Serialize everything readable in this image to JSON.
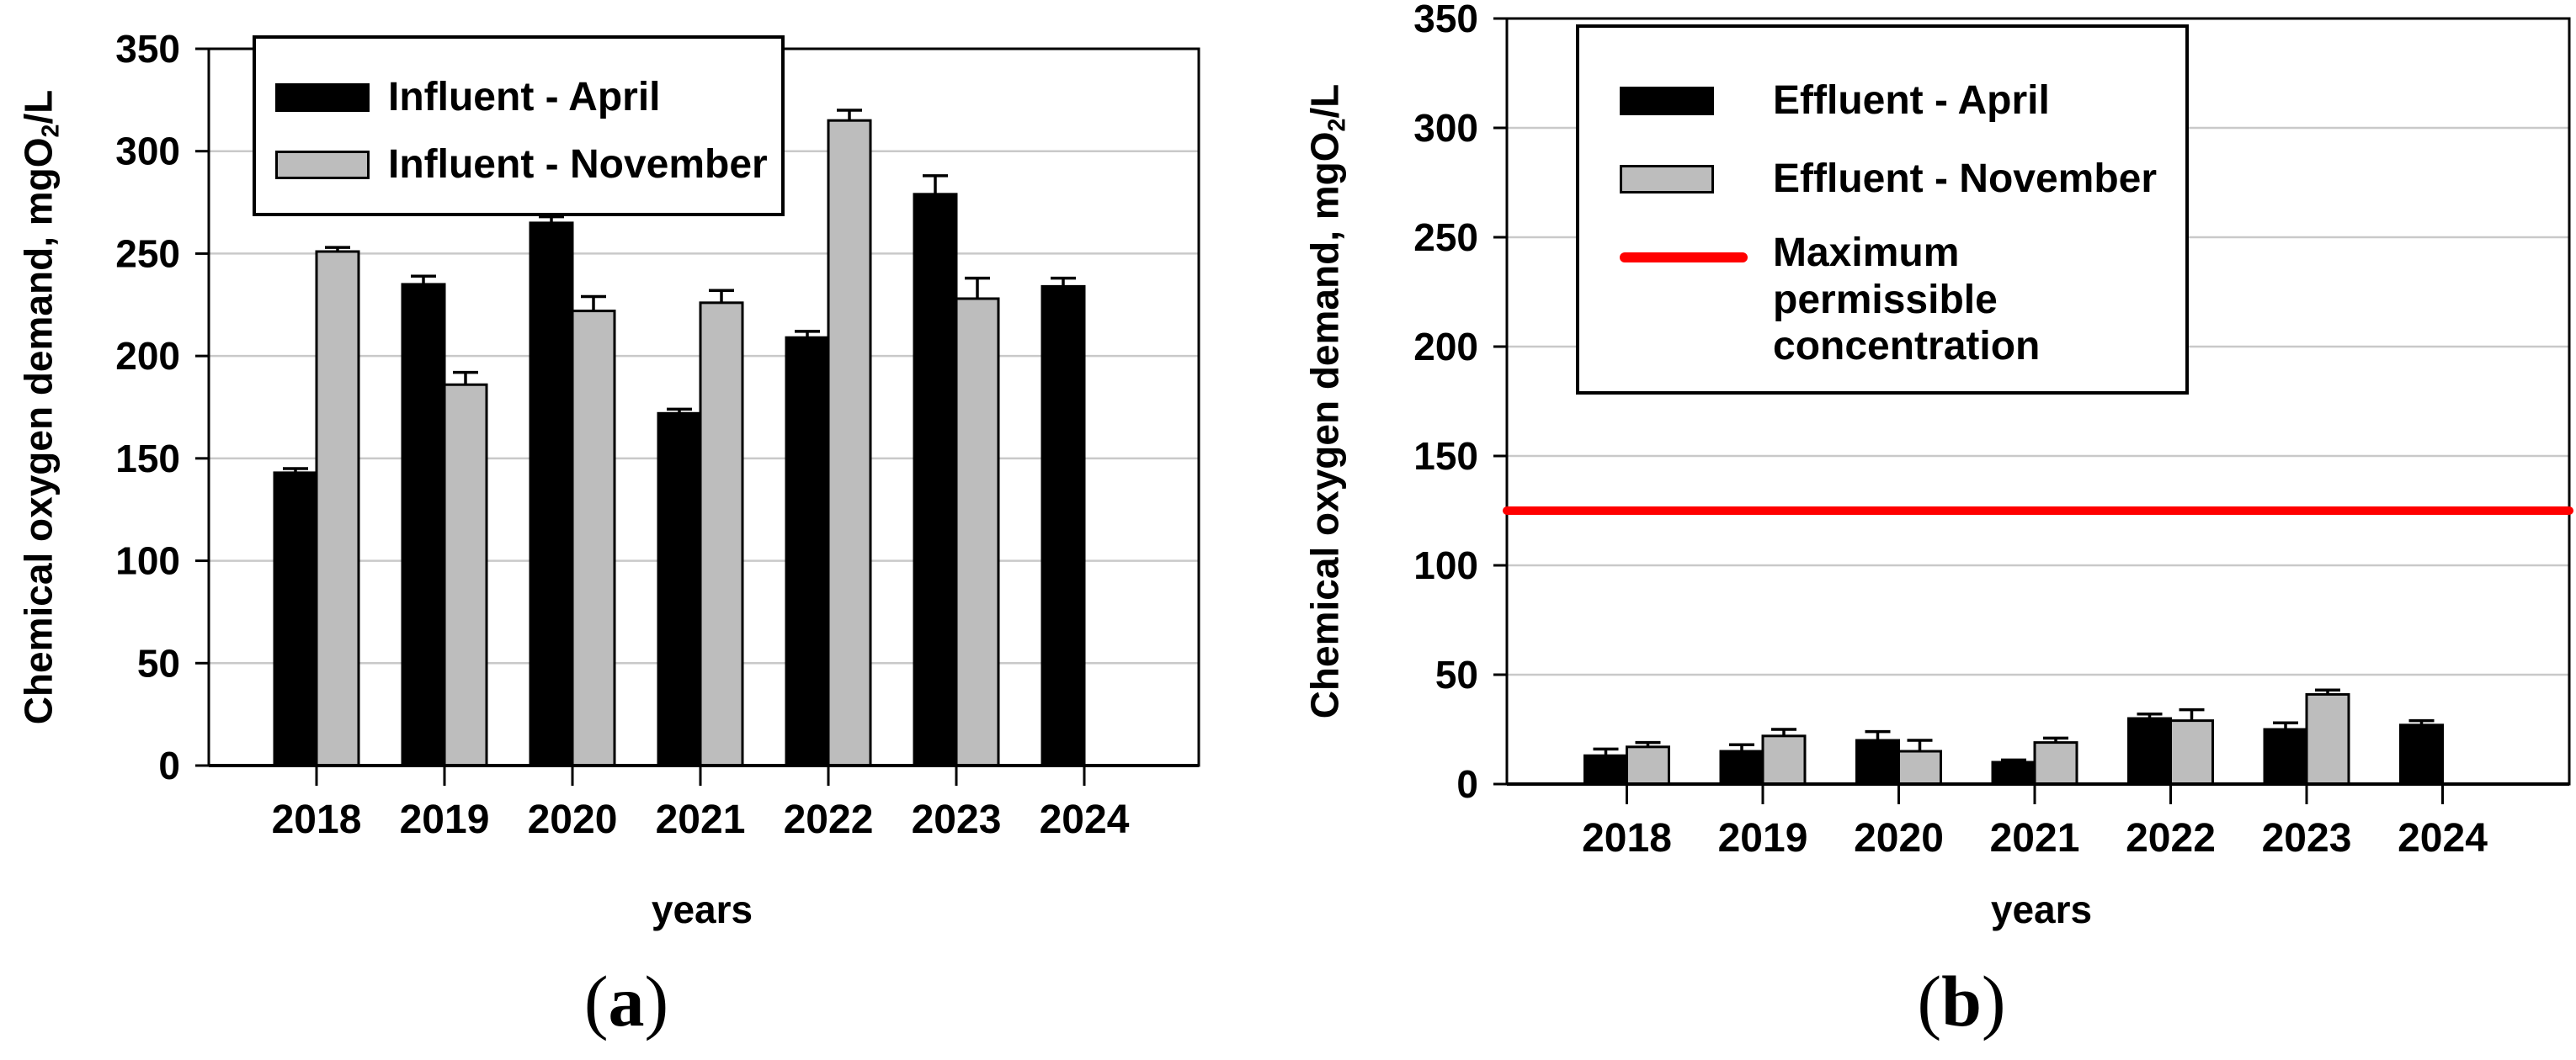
{
  "colors": {
    "april_bar": "#000000",
    "november_bar": "#bdbdbd",
    "max_line": "#ff0000",
    "grid_line": "#c9c9c9",
    "axis": "#000000"
  },
  "panels": [
    {
      "caption": {
        "open": "(",
        "letter": "a",
        "close": ")"
      },
      "xlabel": "years",
      "ylabel": {
        "pre": "Chemical oxygen demand, mgO",
        "sub": "2",
        "post": "/L"
      },
      "legend": [
        {
          "label": "Influent - April",
          "swatch": "black-bar"
        },
        {
          "label": "Influent - November",
          "swatch": "gray-bar"
        }
      ]
    },
    {
      "caption": {
        "open": "(",
        "letter": "b",
        "close": ")"
      },
      "xlabel": "years",
      "ylabel": {
        "pre": "Chemical oxygen demand, mgO",
        "sub": "2",
        "post": "/L"
      },
      "legend": [
        {
          "label": "Effluent - April",
          "swatch": "black-bar"
        },
        {
          "label": "Effluent - November",
          "swatch": "gray-bar"
        },
        {
          "label": "Maximum permissible concentration",
          "swatch": "red-line"
        }
      ]
    }
  ],
  "chart_data": [
    {
      "type": "bar",
      "panel": "a",
      "title": "Influent chemical oxygen demand by year",
      "categories": [
        "2018",
        "2019",
        "2020",
        "2021",
        "2022",
        "2023",
        "2024"
      ],
      "series": [
        {
          "name": "Influent - April",
          "color": "#000000",
          "values": [
            143,
            235,
            265,
            172,
            209,
            279,
            234
          ],
          "error_bars": [
            2,
            4,
            3,
            2,
            3,
            9,
            4
          ]
        },
        {
          "name": "Influent - November",
          "color": "#bdbdbd",
          "values": [
            251,
            186,
            222,
            226,
            315,
            228,
            null
          ],
          "error_bars": [
            2,
            6,
            7,
            6,
            5,
            10,
            null
          ]
        }
      ],
      "xlabel": "years",
      "ylabel": "Chemical oxygen demand, mgO2/L",
      "ylim": [
        0,
        350
      ],
      "ytick_step": 50,
      "grid": true,
      "legend_position": "upper-left-inside"
    },
    {
      "type": "bar",
      "panel": "b",
      "title": "Effluent chemical oxygen demand by year",
      "categories": [
        "2018",
        "2019",
        "2020",
        "2021",
        "2022",
        "2023",
        "2024"
      ],
      "series": [
        {
          "name": "Effluent - April",
          "color": "#000000",
          "values": [
            13,
            15,
            20,
            10,
            30,
            25,
            27
          ],
          "error_bars": [
            3,
            3,
            4,
            1,
            2,
            3,
            2
          ]
        },
        {
          "name": "Effluent - November",
          "color": "#bdbdbd",
          "values": [
            17,
            22,
            15,
            19,
            29,
            41,
            null
          ],
          "error_bars": [
            2,
            3,
            5,
            2,
            5,
            2,
            null
          ]
        }
      ],
      "ref_line": {
        "name": "Maximum permissible concentration",
        "value": 125,
        "color": "#ff0000"
      },
      "xlabel": "years",
      "ylabel": "Chemical oxygen demand, mgO2/L",
      "ylim": [
        0,
        350
      ],
      "ytick_step": 50,
      "grid": true,
      "legend_position": "upper-left-inside"
    }
  ]
}
